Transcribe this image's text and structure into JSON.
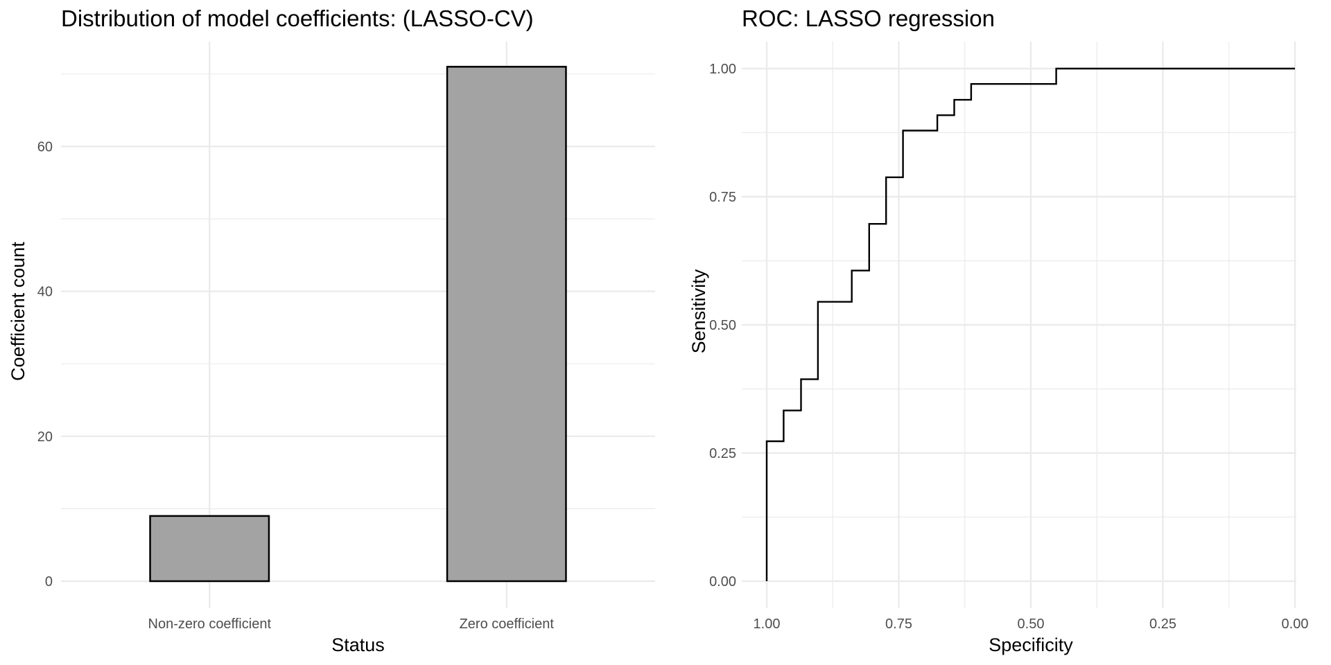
{
  "chart_data": [
    {
      "type": "bar",
      "title": "Distribution of model coefficients: (LASSO-CV)",
      "xlabel": "Status",
      "ylabel": "Coefficient count",
      "categories": [
        "Non-zero coefficient",
        "Zero coefficient"
      ],
      "values": [
        9,
        71
      ],
      "ylim": [
        0,
        75
      ],
      "yticks": [
        0,
        20,
        40,
        60
      ],
      "ytick_labels": [
        "0",
        "20",
        "40",
        "60"
      ],
      "bar_fill": "#a3a3a3",
      "bar_stroke": "#000000",
      "grid": true,
      "legend": "none"
    },
    {
      "type": "line",
      "title": "ROC: LASSO regression",
      "xlabel": "Specificity",
      "ylabel": "Sensitivity",
      "x_reversed": true,
      "xlim": [
        1.0,
        0.0
      ],
      "ylim": [
        0.0,
        1.0
      ],
      "xticks": [
        1.0,
        0.75,
        0.5,
        0.25,
        0.0
      ],
      "xtick_labels": [
        "1.00",
        "0.75",
        "0.50",
        "0.25",
        "0.00"
      ],
      "yticks": [
        0.0,
        0.25,
        0.5,
        0.75,
        1.0
      ],
      "ytick_labels": [
        "0.00",
        "0.25",
        "0.50",
        "0.75",
        "1.00"
      ],
      "line_color": "#000000",
      "grid": true,
      "legend": "none",
      "series": [
        {
          "x": [
            1.0,
            1.0,
            0.968,
            0.968,
            0.935,
            0.935,
            0.903,
            0.903,
            0.839,
            0.839,
            0.806,
            0.806,
            0.774,
            0.774,
            0.742,
            0.742,
            0.677,
            0.677,
            0.645,
            0.645,
            0.613,
            0.613,
            0.452,
            0.452,
            0.0
          ],
          "y": [
            0.0,
            0.273,
            0.273,
            0.333,
            0.333,
            0.394,
            0.394,
            0.545,
            0.545,
            0.606,
            0.606,
            0.697,
            0.697,
            0.788,
            0.788,
            0.879,
            0.879,
            0.909,
            0.909,
            0.939,
            0.939,
            0.97,
            0.97,
            1.0,
            1.0
          ]
        }
      ]
    }
  ]
}
